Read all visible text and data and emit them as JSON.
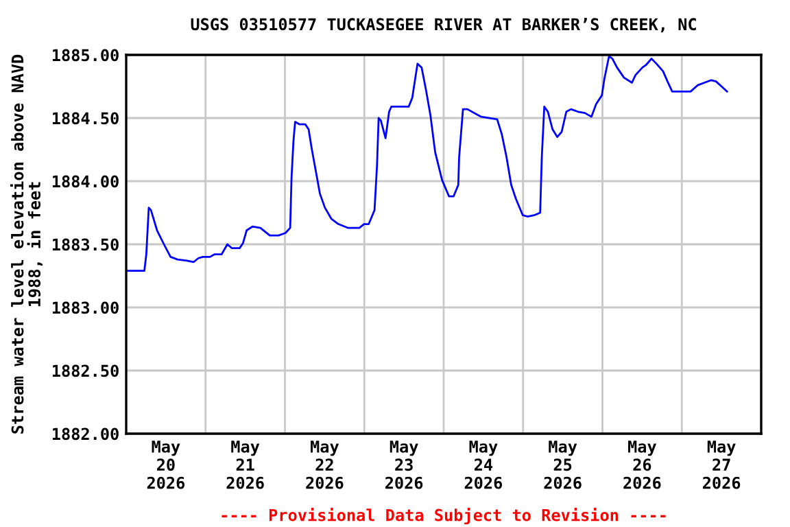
{
  "chart_data": {
    "type": "line",
    "title": "USGS 03510577 TUCKASEGEE RIVER AT BARKER’S CREEK, NC",
    "ylabel": "Stream water level elevation above NAVD\n1988, in feet",
    "annotations": [
      "---- Provisional Data Subject to Revision ----"
    ],
    "grid": true,
    "legend": false,
    "marker": "none",
    "line_style": "solid",
    "xlim": [
      "2026-05-20T00:00",
      "2026-05-28T00:00"
    ],
    "xticks": [
      {
        "value": "2026-05-20T00:00",
        "label": null
      },
      {
        "value": "2026-05-20T12:00",
        "label": "May\n20\n2026"
      },
      {
        "value": "2026-05-21T00:00",
        "label": null
      },
      {
        "value": "2026-05-21T12:00",
        "label": "May\n21\n2026"
      },
      {
        "value": "2026-05-22T00:00",
        "label": null
      },
      {
        "value": "2026-05-22T12:00",
        "label": "May\n22\n2026"
      },
      {
        "value": "2026-05-23T00:00",
        "label": null
      },
      {
        "value": "2026-05-23T12:00",
        "label": "May\n23\n2026"
      },
      {
        "value": "2026-05-24T00:00",
        "label": null
      },
      {
        "value": "2026-05-24T12:00",
        "label": "May\n24\n2026"
      },
      {
        "value": "2026-05-25T00:00",
        "label": null
      },
      {
        "value": "2026-05-25T12:00",
        "label": "May\n25\n2026"
      },
      {
        "value": "2026-05-26T00:00",
        "label": null
      },
      {
        "value": "2026-05-26T12:00",
        "label": "May\n26\n2026"
      },
      {
        "value": "2026-05-27T00:00",
        "label": null
      },
      {
        "value": "2026-05-27T12:00",
        "label": "May\n27\n2026"
      },
      {
        "value": "2026-05-28T00:00",
        "label": null
      }
    ],
    "ylim": [
      1882.0,
      1885.0
    ],
    "yticks": [
      {
        "value": 1882.0,
        "label": "1882.00"
      },
      {
        "value": 1882.5,
        "label": "1882.50"
      },
      {
        "value": 1883.0,
        "label": "1883.00"
      },
      {
        "value": 1883.5,
        "label": "1883.50"
      },
      {
        "value": 1884.0,
        "label": "1884.00"
      },
      {
        "value": 1884.5,
        "label": "1884.50"
      },
      {
        "value": 1885.0,
        "label": "1885.00"
      }
    ],
    "series": [
      {
        "color": "#0000ff",
        "x": [
          "2026-05-20T00:00",
          "2026-05-20T05:30",
          "2026-05-20T06:05",
          "2026-05-20T06:50",
          "2026-05-20T07:30",
          "2026-05-20T09:20",
          "2026-05-20T11:25",
          "2026-05-20T13:25",
          "2026-05-20T15:30",
          "2026-05-20T18:20",
          "2026-05-20T20:25",
          "2026-05-20T21:50",
          "2026-05-20T23:10",
          "2026-05-21T01:20",
          "2026-05-21T02:40",
          "2026-05-21T04:50",
          "2026-05-21T06:35",
          "2026-05-21T07:55",
          "2026-05-21T10:20",
          "2026-05-21T11:20",
          "2026-05-21T12:25",
          "2026-05-21T14:10",
          "2026-05-21T16:35",
          "2026-05-21T19:25",
          "2026-05-21T22:05",
          "2026-05-22T00:10",
          "2026-05-22T01:35",
          "2026-05-22T02:00",
          "2026-05-22T02:35",
          "2026-05-22T03:05",
          "2026-05-22T04:25",
          "2026-05-22T06:10",
          "2026-05-22T07:10",
          "2026-05-22T08:05",
          "2026-05-22T09:20",
          "2026-05-22T10:35",
          "2026-05-22T12:05",
          "2026-05-22T14:05",
          "2026-05-22T16:10",
          "2026-05-22T19:00",
          "2026-05-22T22:30",
          "2026-05-22T23:55",
          "2026-05-23T01:20",
          "2026-05-23T03:05",
          "2026-05-23T03:50",
          "2026-05-23T04:20",
          "2026-05-23T05:00",
          "2026-05-23T06:25",
          "2026-05-23T07:30",
          "2026-05-23T08:10",
          "2026-05-23T13:25",
          "2026-05-23T14:30",
          "2026-05-23T16:05",
          "2026-05-23T17:20",
          "2026-05-23T18:40",
          "2026-05-23T20:00",
          "2026-05-23T21:25",
          "2026-05-23T23:30",
          "2026-05-24T01:35",
          "2026-05-24T03:00",
          "2026-05-24T04:25",
          "2026-05-24T04:40",
          "2026-05-24T05:50",
          "2026-05-24T07:10",
          "2026-05-24T11:20",
          "2026-05-24T16:10",
          "2026-05-24T17:35",
          "2026-05-24T19:00",
          "2026-05-24T20:25",
          "2026-05-24T21:50",
          "2026-05-24T23:55",
          "2026-05-25T01:20",
          "2026-05-25T03:20",
          "2026-05-25T05:10",
          "2026-05-25T05:40",
          "2026-05-25T06:25",
          "2026-05-25T07:30",
          "2026-05-25T08:55",
          "2026-05-25T10:20",
          "2026-05-25T11:40",
          "2026-05-25T13:05",
          "2026-05-25T14:30",
          "2026-05-25T16:35",
          "2026-05-25T18:40",
          "2026-05-25T20:40",
          "2026-05-25T22:05",
          "2026-05-25T23:50",
          "2026-05-26T00:35",
          "2026-05-26T02:00",
          "2026-05-26T03:00",
          "2026-05-26T04:25",
          "2026-05-26T06:30",
          "2026-05-26T08:55",
          "2026-05-26T10:00",
          "2026-05-26T12:05",
          "2026-05-26T13:10",
          "2026-05-26T14:50",
          "2026-05-26T16:20",
          "2026-05-26T18:20",
          "2026-05-26T19:40",
          "2026-05-26T21:05",
          "2026-05-27T00:35",
          "2026-05-27T02:40",
          "2026-05-27T04:50",
          "2026-05-27T06:50",
          "2026-05-27T08:55",
          "2026-05-27T10:20",
          "2026-05-27T12:25",
          "2026-05-27T13:40"
        ],
        "values": [
          1883.29,
          1883.29,
          1883.42,
          1883.79,
          1883.77,
          1883.61,
          1883.5,
          1883.4,
          1883.38,
          1883.37,
          1883.36,
          1883.39,
          1883.4,
          1883.4,
          1883.42,
          1883.42,
          1883.5,
          1883.47,
          1883.47,
          1883.51,
          1883.61,
          1883.64,
          1883.63,
          1883.57,
          1883.57,
          1883.59,
          1883.63,
          1884.03,
          1884.32,
          1884.47,
          1884.45,
          1884.45,
          1884.41,
          1884.26,
          1884.08,
          1883.9,
          1883.79,
          1883.7,
          1883.66,
          1883.63,
          1883.63,
          1883.66,
          1883.66,
          1883.77,
          1884.12,
          1884.5,
          1884.48,
          1884.34,
          1884.55,
          1884.59,
          1884.59,
          1884.66,
          1884.93,
          1884.9,
          1884.72,
          1884.52,
          1884.23,
          1884.01,
          1883.88,
          1883.88,
          1883.97,
          1884.19,
          1884.57,
          1884.57,
          1884.51,
          1884.49,
          1884.37,
          1884.19,
          1883.97,
          1883.86,
          1883.73,
          1883.72,
          1883.73,
          1883.75,
          1884.19,
          1884.59,
          1884.55,
          1884.41,
          1884.35,
          1884.39,
          1884.55,
          1884.57,
          1884.55,
          1884.54,
          1884.51,
          1884.61,
          1884.68,
          1884.81,
          1884.99,
          1884.97,
          1884.9,
          1884.82,
          1884.78,
          1884.84,
          1884.9,
          1884.92,
          1884.97,
          1884.93,
          1884.87,
          1884.79,
          1884.71,
          1884.71,
          1884.71,
          1884.76,
          1884.78,
          1884.8,
          1884.79,
          1884.74,
          1884.71
        ]
      }
    ]
  }
}
